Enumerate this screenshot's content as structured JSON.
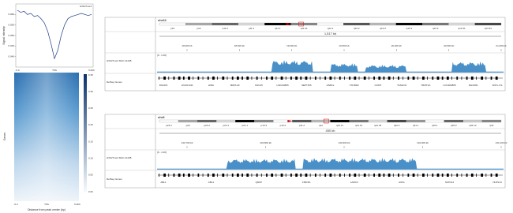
{
  "profile": {
    "legend": "H3K27me3",
    "ylabel": "Signal intensity",
    "xtick_labels": [
      "-5.0",
      "TSS",
      "5.0Kb"
    ],
    "ylim": [
      0.035,
      0.065
    ],
    "yticks": [
      {
        "value": 0.04,
        "label": "0.040"
      },
      {
        "value": 0.045,
        "label": "0.045"
      },
      {
        "value": 0.05,
        "label": "0.050"
      },
      {
        "value": 0.055,
        "label": "0.055"
      },
      {
        "value": 0.06,
        "label": "0.060"
      }
    ],
    "values": [
      0.062,
      0.061,
      0.0615,
      0.06,
      0.0605,
      0.059,
      0.0595,
      0.058,
      0.056,
      0.052,
      0.046,
      0.039,
      0.043,
      0.05,
      0.055,
      0.058,
      0.059,
      0.0595,
      0.06,
      0.0605,
      0.06,
      0.0595,
      0.06
    ]
  },
  "heatmap": {
    "ylabel": "Genes",
    "xtick_labels": [
      "-5.0",
      "TSS",
      "5.0Kb"
    ],
    "xlabel": "Distance from peak center (bp)",
    "colorbar_ticks": [
      "0.35",
      "0.30",
      "0.25",
      "0.20",
      "0.15",
      "0.10",
      "0.05",
      "0.00"
    ]
  },
  "browser_panels": [
    {
      "chromosome": "chr22",
      "bands": [
        "p13",
        "p12",
        "p11.2",
        "p11.1",
        "q11.1",
        "q11.21",
        "q12.1",
        "q12.2",
        "q12.3",
        "q13.1",
        "q13.2",
        "q13.31",
        "q13.33"
      ],
      "span": "1,517 kb",
      "positions": [
        "18,000 kb",
        "18,500 kb",
        "19,000 kb",
        "19,500 kb",
        "20,000 kb",
        "20,500 kb",
        "21,000 kb"
      ],
      "signal_track": "H3K27me3 MAC-11198",
      "signal_range": "[0 - 1.00]",
      "gene_track": "RefSeq Genes",
      "genes": [
        "DGCR2",
        "LINC01311",
        "HIRA",
        "MRPL40",
        "CDC45",
        "LINC00895",
        "SEPTIN5",
        "GNB1L",
        "TXNRD2",
        "COMT",
        "TANGO2",
        "TRMT2A",
        "LOC284865",
        "DGCR6L",
        "SNTL-CS"
      ]
    },
    {
      "chromosome": "chr9",
      "bands": [
        "p24.2",
        "p23",
        "p22.2",
        "p21.3",
        "p21.1",
        "p13.3",
        "p13.2",
        "p11.2",
        "q12",
        "q21.11",
        "q21.13",
        "q21.33",
        "q22.2",
        "q31.1",
        "q33.1",
        "q33.3",
        "q34.12",
        "q34"
      ],
      "span": "450 kb",
      "positions": [
        "133,700 kb",
        "133,800 kb",
        "133,900 kb",
        "134,000 kb",
        "134,100 kb"
      ],
      "signal_track": "H3K27me3 MAC-11198",
      "signal_range": "[0 - 1.00]",
      "gene_track": "RefSeq Genes",
      "genes": [
        "ABL1",
        "ABL1",
        "QRFP",
        "FIBCD1",
        "LAMC3",
        "AIF1L",
        "NUP214",
        "NUP214"
      ]
    }
  ]
}
